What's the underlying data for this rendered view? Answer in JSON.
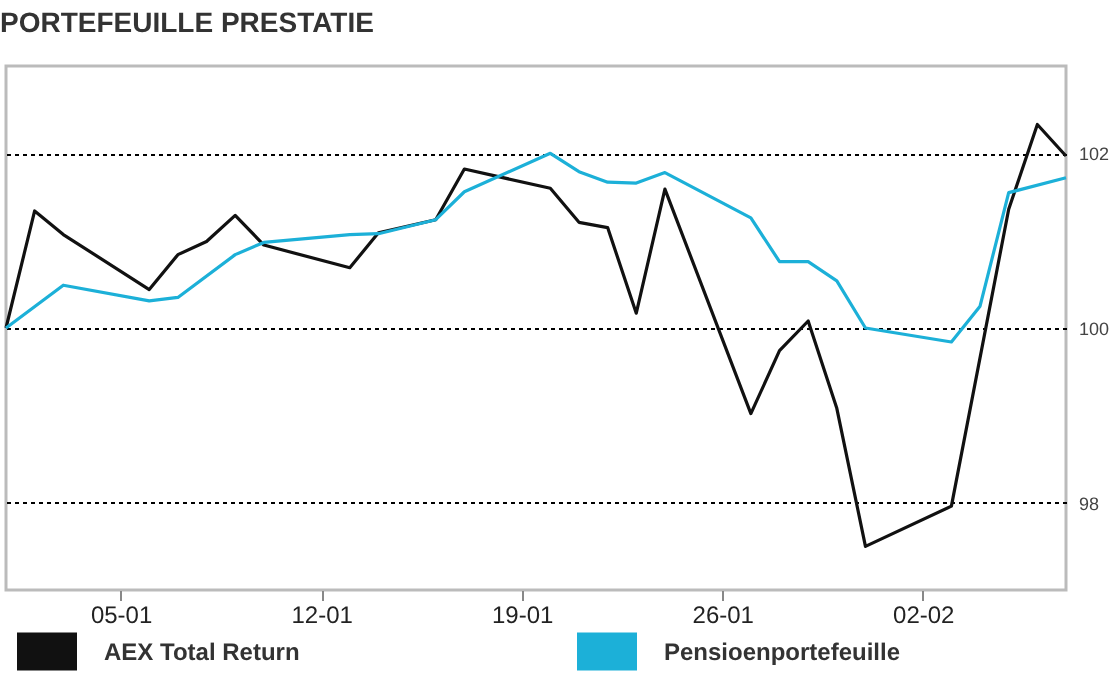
{
  "chart_data": {
    "type": "line",
    "title": "PORTEFEUILLE PRESTATIE",
    "xlim": [
      "--01-01",
      "--02-07"
    ],
    "xticks": [
      {
        "value": "--01-05",
        "label": "05-01"
      },
      {
        "value": "--01-12",
        "label": "12-01"
      },
      {
        "value": "--01-19",
        "label": "19-01"
      },
      {
        "value": "--01-26",
        "label": "26-01"
      },
      {
        "value": "--02-02",
        "label": "02-02"
      }
    ],
    "ylim": [
      97,
      103
    ],
    "yticks": [
      98,
      100,
      102
    ],
    "grid": "y",
    "legend": "bottom",
    "series": [
      {
        "name": "AEX Total Return",
        "color": "#111111",
        "x": [
          "--01-01",
          "--01-02",
          "--01-03",
          "--01-06",
          "--01-07",
          "--01-08",
          "--01-09",
          "--01-10",
          "--01-13",
          "--01-14",
          "--01-16",
          "--01-17",
          "--01-20",
          "--01-21",
          "--01-22",
          "--01-23",
          "--01-24",
          "--01-27",
          "--01-28",
          "--01-29",
          "--01-30",
          "--01-31",
          "--02-03",
          "--02-05",
          "--02-06",
          "--02-07"
        ],
        "values": [
          100,
          101.34,
          101.07,
          100.44,
          100.84,
          100.99,
          101.29,
          100.95,
          100.69,
          101.09,
          101.24,
          101.82,
          101.6,
          101.21,
          101.15,
          100.17,
          101.59,
          99.02,
          99.74,
          100.08,
          99.08,
          97.5,
          97.96,
          101.36,
          102.33,
          101.97
        ]
      },
      {
        "name": "Pensioenportefeuille",
        "color": "#1cb0d8",
        "x": [
          "--01-01",
          "--01-03",
          "--01-06",
          "--01-07",
          "--01-09",
          "--01-10",
          "--01-13",
          "--01-14",
          "--01-16",
          "--01-17",
          "--01-20",
          "--01-21",
          "--01-22",
          "--01-23",
          "--01-24",
          "--01-27",
          "--01-28",
          "--01-29",
          "--01-30",
          "--01-31",
          "--02-03",
          "--02-04",
          "--02-05",
          "--02-07"
        ],
        "values": [
          100,
          100.49,
          100.31,
          100.35,
          100.84,
          100.98,
          101.07,
          101.08,
          101.24,
          101.56,
          102.0,
          101.79,
          101.67,
          101.66,
          101.78,
          101.26,
          100.76,
          100.76,
          100.54,
          100.0,
          99.84,
          100.25,
          101.55,
          101.72
        ]
      }
    ]
  }
}
